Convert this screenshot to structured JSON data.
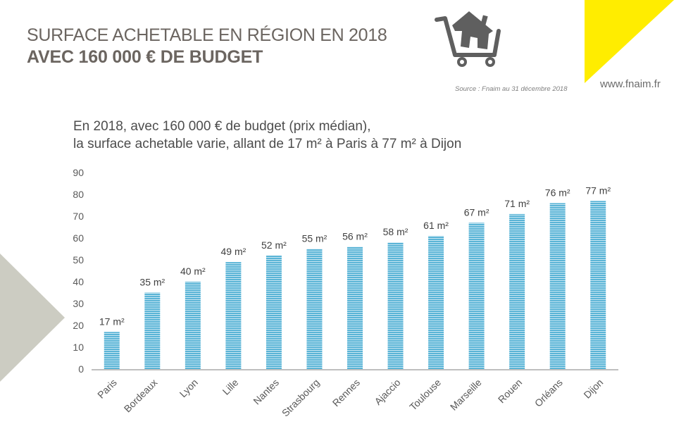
{
  "header": {
    "title_line1": "SURFACE ACHETABLE EN RÉGION EN 2018",
    "title_line2": "AVEC 160 000 € DE BUDGET",
    "source": "Source : Fnaim au 31 décembre 2018",
    "website": "www.fnaim.fr",
    "icon": "shopping-cart-house-icon"
  },
  "colors": {
    "bar": "#5ab4d6",
    "bar_stripe": "#c9e7f3",
    "accent_yellow": "#ffed00",
    "accent_gray": "#ccccc2",
    "title": "#6b6560"
  },
  "chart_data": {
    "type": "bar",
    "title": "En 2018, avec 160 000 € de budget (prix médian), la surface achetable varie, allant de 17 m² à Paris à 77 m² à Dijon",
    "subtitle_lines": [
      "En 2018, avec 160 000 € de budget (prix médian),",
      "la surface achetable varie, allant de 17 m² à Paris à 77 m² à Dijon"
    ],
    "xlabel": "",
    "ylabel": "",
    "unit": "m²",
    "categories": [
      "Paris",
      "Bordeaux",
      "Lyon",
      "Lille",
      "Nantes",
      "Strasbourg",
      "Rennes",
      "Ajaccio",
      "Toulouse",
      "Marseille",
      "Rouen",
      "Orléans",
      "Dijon"
    ],
    "values": [
      17,
      35,
      40,
      49,
      52,
      55,
      56,
      58,
      61,
      67,
      71,
      76,
      77
    ],
    "data_labels": [
      "17 m²",
      "35 m²",
      "40 m²",
      "49 m²",
      "52 m²",
      "55 m²",
      "56 m²",
      "58 m²",
      "61 m²",
      "67 m²",
      "71 m²",
      "76 m²",
      "77 m²"
    ],
    "ylim": [
      0,
      90
    ],
    "yticks": [
      0,
      10,
      20,
      30,
      40,
      50,
      60,
      70,
      80,
      90
    ],
    "grid": false,
    "legend": "none"
  }
}
